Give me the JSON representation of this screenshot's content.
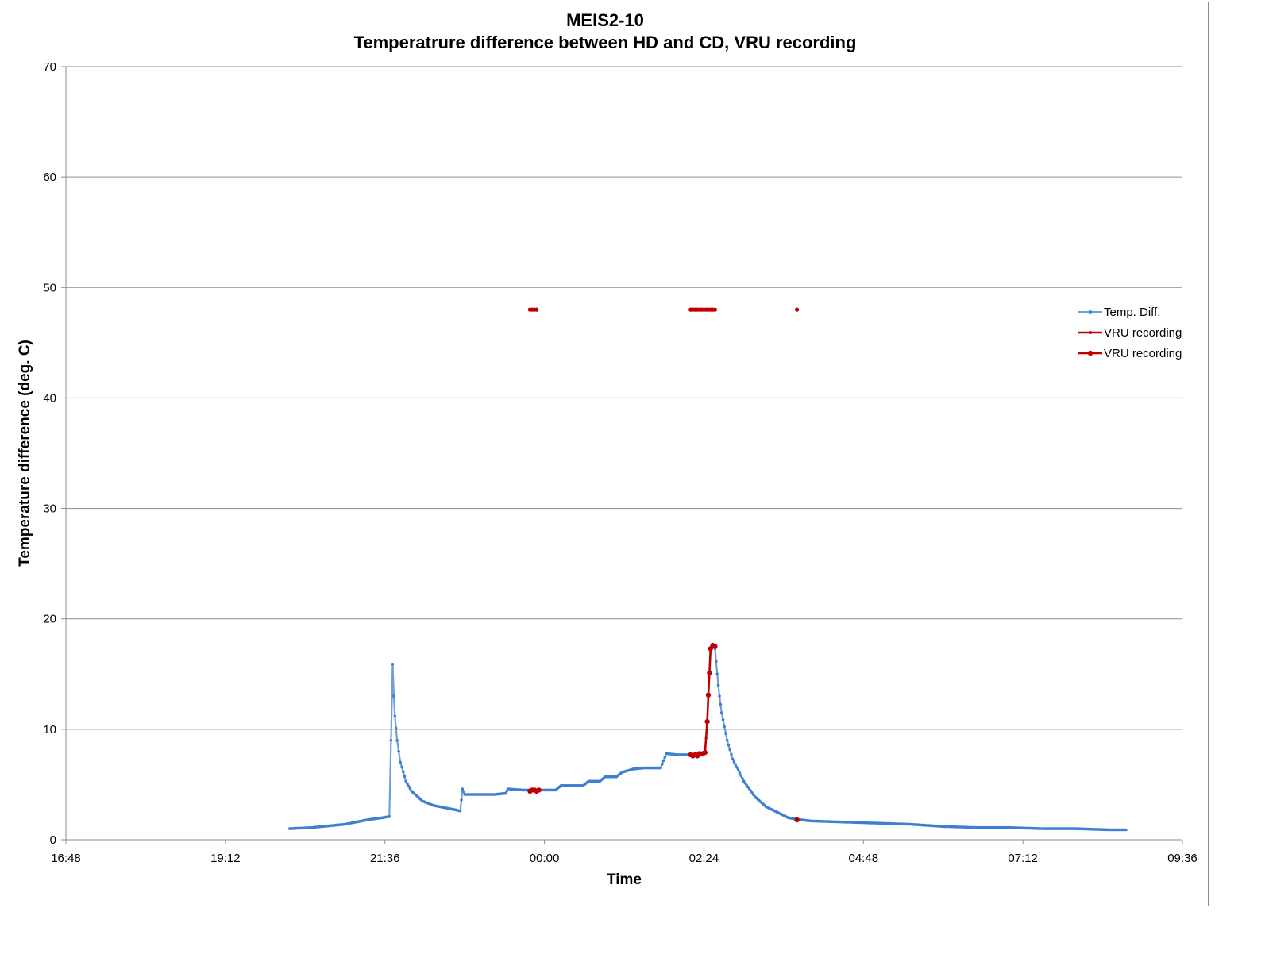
{
  "chart_data": {
    "type": "line",
    "title": "MEIS2-10",
    "subtitle": "Temperatrure difference between HD and CD, VRU recording",
    "xlabel": "Time",
    "ylabel": "Temperature difference (deg. C)",
    "ylim": [
      0,
      70
    ],
    "yticks": [
      "0",
      "10",
      "20",
      "30",
      "40",
      "50",
      "60",
      "70"
    ],
    "xticks": [
      "16:48",
      "19:12",
      "21:36",
      "00:00",
      "02:24",
      "04:48",
      "07:12",
      "09:36"
    ],
    "xlim_hours": [
      16.8,
      33.6
    ],
    "grid": true,
    "legend_position": "right",
    "colors": {
      "temp": "#6f9fd8",
      "temp_marker": "#3f7fd0",
      "vru": "#c00000",
      "grid": "#8c8c8c"
    },
    "legend": [
      {
        "label": "Temp. Diff.",
        "series": "temp"
      },
      {
        "label": "VRU recording",
        "series": "vru_line"
      },
      {
        "label": "VRU recording",
        "series": "vru_marker"
      }
    ],
    "series": [
      {
        "name": "Temp. Diff.",
        "key": "temp",
        "points": [
          [
            "20:10",
            1.0
          ],
          [
            "20:30",
            1.1
          ],
          [
            "21:00",
            1.4
          ],
          [
            "21:20",
            1.8
          ],
          [
            "21:34",
            2.0
          ],
          [
            "21:40",
            2.1
          ],
          [
            "21:43",
            15.9
          ],
          [
            "21:44",
            13.0
          ],
          [
            "21:45",
            11.2
          ],
          [
            "21:47",
            9.0
          ],
          [
            "21:50",
            7.0
          ],
          [
            "21:55",
            5.3
          ],
          [
            "22:00",
            4.4
          ],
          [
            "22:10",
            3.5
          ],
          [
            "22:20",
            3.1
          ],
          [
            "22:30",
            2.9
          ],
          [
            "22:40",
            2.7
          ],
          [
            "22:44",
            2.6
          ],
          [
            "22:46",
            4.6
          ],
          [
            "22:48",
            4.1
          ],
          [
            "23:00",
            4.1
          ],
          [
            "23:15",
            4.1
          ],
          [
            "23:25",
            4.2
          ],
          [
            "23:27",
            4.6
          ],
          [
            "23:40",
            4.5
          ],
          [
            "23:55",
            4.5
          ],
          [
            "24:10",
            4.5
          ],
          [
            "24:15",
            4.9
          ],
          [
            "24:35",
            4.9
          ],
          [
            "24:40",
            5.3
          ],
          [
            "24:50",
            5.3
          ],
          [
            "24:55",
            5.7
          ],
          [
            "25:05",
            5.7
          ],
          [
            "25:10",
            6.1
          ],
          [
            "25:20",
            6.4
          ],
          [
            "25:30",
            6.5
          ],
          [
            "25:45",
            6.5
          ],
          [
            "25:50",
            7.8
          ],
          [
            "26:00",
            7.7
          ],
          [
            "26:10",
            7.7
          ],
          [
            "26:20",
            7.8
          ],
          [
            "26:25",
            7.8
          ],
          [
            "26:27",
            10.6
          ],
          [
            "26:28",
            13.0
          ],
          [
            "26:29",
            15.0
          ],
          [
            "26:30",
            17.2
          ],
          [
            "26:32",
            17.6
          ],
          [
            "26:34",
            17.3
          ],
          [
            "26:36",
            15.0
          ],
          [
            "26:38",
            13.0
          ],
          [
            "26:40",
            11.5
          ],
          [
            "26:45",
            9.0
          ],
          [
            "26:50",
            7.3
          ],
          [
            "27:00",
            5.3
          ],
          [
            "27:10",
            3.9
          ],
          [
            "27:20",
            3.0
          ],
          [
            "27:30",
            2.5
          ],
          [
            "27:40",
            2.0
          ],
          [
            "27:45",
            1.9
          ],
          [
            "28:00",
            1.7
          ],
          [
            "28:30",
            1.6
          ],
          [
            "29:00",
            1.5
          ],
          [
            "29:30",
            1.4
          ],
          [
            "30:00",
            1.2
          ],
          [
            "30:30",
            1.1
          ],
          [
            "31:00",
            1.1
          ],
          [
            "31:30",
            1.0
          ],
          [
            "32:00",
            1.0
          ],
          [
            "32:30",
            0.9
          ],
          [
            "32:45",
            0.9
          ]
        ]
      },
      {
        "name": "VRU recording",
        "key": "vru_line",
        "points": [
          [
            "23:47",
            4.4
          ],
          [
            "23:49",
            4.5
          ],
          [
            "23:51",
            4.5
          ],
          [
            "23:53",
            4.4
          ],
          [
            "23:55",
            4.5
          ],
          [
            "26:12",
            7.7
          ],
          [
            "26:14",
            7.6
          ],
          [
            "26:16",
            7.7
          ],
          [
            "26:18",
            7.6
          ],
          [
            "26:20",
            7.8
          ],
          [
            "26:23",
            7.8
          ],
          [
            "26:25",
            7.9
          ],
          [
            "26:27",
            10.7
          ],
          [
            "26:28",
            13.1
          ],
          [
            "26:29",
            15.1
          ],
          [
            "26:30",
            17.3
          ],
          [
            "26:32",
            17.6
          ],
          [
            "26:34",
            17.5
          ],
          [
            "27:48",
            1.8
          ]
        ]
      },
      {
        "name": "VRU recording",
        "key": "vru_marker",
        "points": [
          [
            "23:47",
            48.0
          ],
          [
            "23:49",
            48.0
          ],
          [
            "23:51",
            48.0
          ],
          [
            "23:53",
            48.0
          ],
          [
            "26:12",
            48.0
          ],
          [
            "26:14",
            48.0
          ],
          [
            "26:16",
            48.0
          ],
          [
            "26:18",
            48.0
          ],
          [
            "26:20",
            48.0
          ],
          [
            "26:22",
            48.0
          ],
          [
            "26:24",
            48.0
          ],
          [
            "26:26",
            48.0
          ],
          [
            "26:28",
            48.0
          ],
          [
            "26:30",
            48.0
          ],
          [
            "26:32",
            48.0
          ],
          [
            "26:34",
            48.0
          ],
          [
            "27:48",
            48.0
          ]
        ]
      }
    ]
  }
}
